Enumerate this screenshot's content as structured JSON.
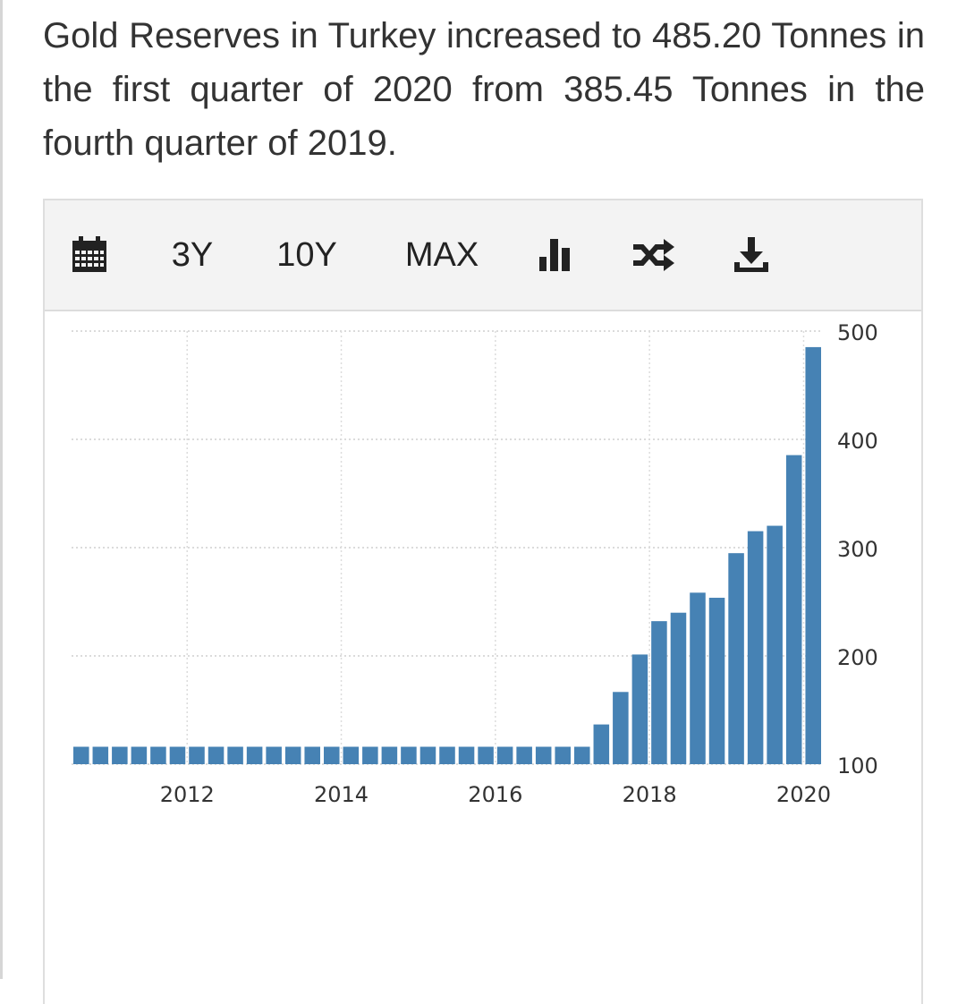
{
  "headline": "Gold Reserves in Turkey increased to 485.20 Tonnes in the first quarter of 2020 from 385.45 Tonnes in the fourth quarter of 2019.",
  "toolbar": {
    "calendar_icon": "calendar-icon",
    "range_3y": "3Y",
    "range_10y": "10Y",
    "range_max": "MAX",
    "bar_chart_icon": "bar-chart-icon",
    "shuffle_icon": "shuffle-icon",
    "download_icon": "download-icon"
  },
  "colors": {
    "bar": "#4682b4",
    "text": "#333333",
    "toolbar_bg": "#f3f3f3"
  },
  "chart_data": {
    "type": "bar",
    "title": "",
    "xlabel": "",
    "ylabel": "",
    "ylim": [
      100,
      500
    ],
    "yticks": [
      100,
      200,
      300,
      400,
      500
    ],
    "xticks": [
      "2012",
      "2014",
      "2016",
      "2018",
      "2020"
    ],
    "grid": true,
    "y_axis_side": "right",
    "categories": [
      "2010-Q3",
      "2010-Q4",
      "2011-Q1",
      "2011-Q2",
      "2011-Q3",
      "2011-Q4",
      "2012-Q1",
      "2012-Q2",
      "2012-Q3",
      "2012-Q4",
      "2013-Q1",
      "2013-Q2",
      "2013-Q3",
      "2013-Q4",
      "2014-Q1",
      "2014-Q2",
      "2014-Q3",
      "2014-Q4",
      "2015-Q1",
      "2015-Q2",
      "2015-Q3",
      "2015-Q4",
      "2016-Q1",
      "2016-Q2",
      "2016-Q3",
      "2016-Q4",
      "2017-Q1",
      "2017-Q2",
      "2017-Q3",
      "2017-Q4",
      "2018-Q1",
      "2018-Q2",
      "2018-Q3",
      "2018-Q4",
      "2019-Q1",
      "2019-Q2",
      "2019-Q3",
      "2019-Q4",
      "2020-Q1"
    ],
    "values": [
      116.1,
      116.1,
      116.1,
      116.1,
      116.1,
      116.1,
      116.1,
      116.1,
      116.1,
      116.1,
      116.1,
      116.1,
      116.1,
      116.1,
      116.1,
      116.1,
      116.1,
      116.1,
      116.1,
      116.1,
      116.1,
      116.1,
      116.1,
      116.1,
      116.1,
      116.1,
      116.1,
      136.7,
      166.7,
      201.3,
      232.1,
      239.9,
      258.4,
      253.7,
      294.9,
      315.2,
      320.2,
      385.45,
      485.2
    ]
  }
}
